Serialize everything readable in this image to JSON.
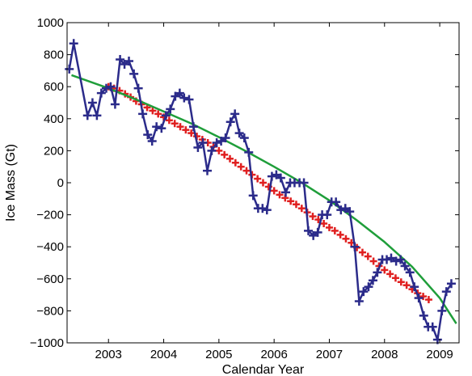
{
  "chart_data": {
    "type": "line",
    "title": "",
    "xlabel": "Calendar Year",
    "ylabel": "Ice Mass (Gt)",
    "xlim": [
      2002.25,
      2009.35
    ],
    "ylim": [
      -1000,
      1000
    ],
    "x_ticks": [
      2003,
      2004,
      2005,
      2006,
      2007,
      2008,
      2009
    ],
    "y_ticks": [
      -1000,
      -800,
      -600,
      -400,
      -200,
      0,
      200,
      400,
      600,
      800,
      1000
    ],
    "grid": false,
    "legend": "none",
    "series": [
      {
        "color": "#2b2b8a",
        "marker": "plus",
        "style": "line+markers",
        "x": [
          2002.29,
          2002.37,
          2002.62,
          2002.71,
          2002.79,
          2002.87,
          2002.96,
          2003.04,
          2003.12,
          2003.21,
          2003.29,
          2003.37,
          2003.46,
          2003.54,
          2003.62,
          2003.71,
          2003.79,
          2003.87,
          2003.96,
          2004.04,
          2004.12,
          2004.21,
          2004.29,
          2004.37,
          2004.46,
          2004.54,
          2004.62,
          2004.71,
          2004.79,
          2004.87,
          2004.96,
          2005.04,
          2005.12,
          2005.21,
          2005.29,
          2005.37,
          2005.46,
          2005.54,
          2005.62,
          2005.71,
          2005.79,
          2005.87,
          2005.96,
          2006.04,
          2006.12,
          2006.21,
          2006.29,
          2006.37,
          2006.46,
          2006.54,
          2006.62,
          2006.71,
          2006.79,
          2006.87,
          2006.96,
          2007.04,
          2007.12,
          2007.21,
          2007.29,
          2007.37,
          2007.46,
          2007.54,
          2007.62,
          2007.71,
          2007.79,
          2007.87,
          2007.96,
          2008.04,
          2008.12,
          2008.21,
          2008.29,
          2008.37,
          2008.46,
          2008.54,
          2008.62,
          2008.71,
          2008.79,
          2008.87,
          2008.96,
          2009.04,
          2009.12,
          2009.21
        ],
        "y": [
          710,
          870,
          420,
          500,
          420,
          560,
          590,
          600,
          490,
          770,
          740,
          760,
          680,
          590,
          430,
          300,
          260,
          350,
          340,
          420,
          460,
          540,
          560,
          530,
          520,
          350,
          220,
          250,
          75,
          200,
          250,
          260,
          280,
          380,
          430,
          310,
          280,
          190,
          -80,
          -160,
          -160,
          -170,
          40,
          50,
          30,
          -60,
          0,
          0,
          0,
          0,
          -300,
          -330,
          -310,
          -200,
          -200,
          -120,
          -120,
          -170,
          -160,
          -180,
          -400,
          -740,
          -680,
          -650,
          -610,
          -560,
          -480,
          -480,
          -470,
          -490,
          -480,
          -520,
          -560,
          -650,
          -720,
          -830,
          -900,
          -900,
          -980,
          -800,
          -680,
          -630
        ]
      },
      {
        "color": "#e02020",
        "marker": "plus",
        "style": "markers",
        "x": [
          2003.0,
          2003.1,
          2003.2,
          2003.3,
          2003.4,
          2003.5,
          2003.6,
          2003.7,
          2003.8,
          2003.9,
          2004.0,
          2004.1,
          2004.2,
          2004.3,
          2004.4,
          2004.5,
          2004.6,
          2004.7,
          2004.8,
          2004.9,
          2005.0,
          2005.1,
          2005.2,
          2005.3,
          2005.4,
          2005.5,
          2005.6,
          2005.7,
          2005.8,
          2005.9,
          2006.0,
          2006.1,
          2006.2,
          2006.3,
          2006.4,
          2006.5,
          2006.6,
          2006.7,
          2006.8,
          2006.9,
          2007.0,
          2007.1,
          2007.2,
          2007.3,
          2007.4,
          2007.5,
          2007.6,
          2007.7,
          2007.8,
          2007.9,
          2008.0,
          2008.1,
          2008.2,
          2008.3,
          2008.4,
          2008.5,
          2008.6,
          2008.7,
          2008.8
        ],
        "y": [
          600,
          590,
          575,
          555,
          535,
          510,
          490,
          470,
          450,
          430,
          410,
          390,
          370,
          350,
          330,
          310,
          290,
          270,
          250,
          225,
          200,
          175,
          150,
          125,
          100,
          75,
          50,
          25,
          0,
          -25,
          -50,
          -75,
          -95,
          -115,
          -135,
          -160,
          -185,
          -210,
          -230,
          -255,
          -280,
          -300,
          -325,
          -350,
          -375,
          -405,
          -435,
          -460,
          -490,
          -520,
          -545,
          -570,
          -595,
          -620,
          -640,
          -665,
          -690,
          -710,
          -730
        ]
      },
      {
        "color": "#1f9e3a",
        "style": "line",
        "x": [
          2002.33,
          2003.0,
          2003.5,
          2004.0,
          2004.5,
          2005.0,
          2005.5,
          2006.0,
          2006.5,
          2007.0,
          2007.5,
          2008.0,
          2008.5,
          2009.0,
          2009.3
        ],
        "y": [
          672,
          590,
          520,
          445,
          370,
          285,
          195,
          100,
          0,
          -110,
          -235,
          -370,
          -525,
          -720,
          -880
        ]
      }
    ]
  }
}
